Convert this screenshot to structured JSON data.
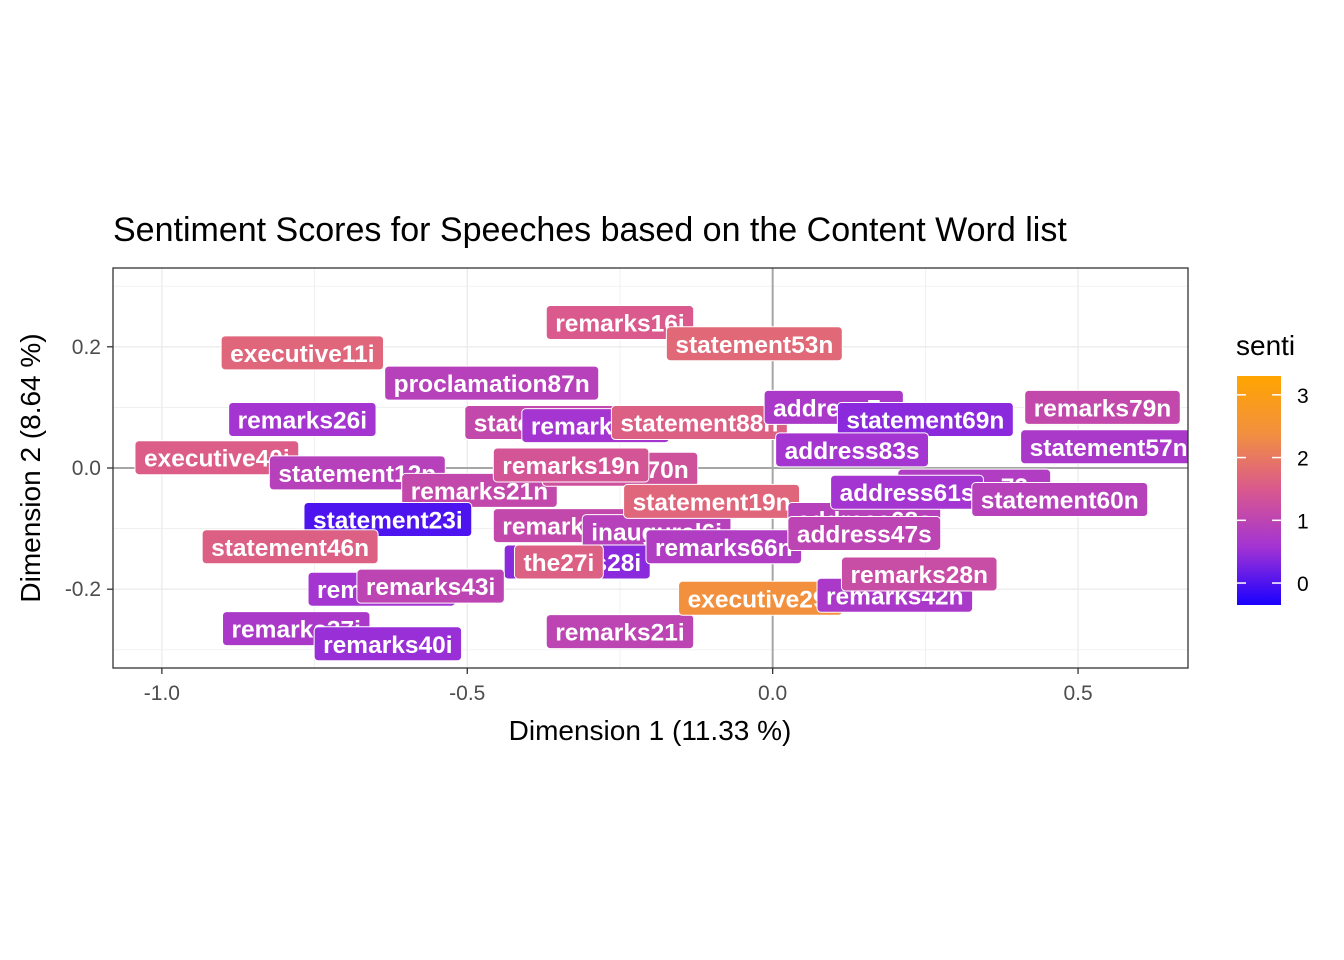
{
  "chart_data": {
    "type": "scatter",
    "title": "Sentiment Scores for Speeches based on the Content Word list",
    "xlabel": "Dimension 1 (11.33 %)",
    "ylabel": "Dimension 2 (8.64 %)",
    "xlim": [
      -1.08,
      0.68
    ],
    "ylim": [
      -0.33,
      0.33
    ],
    "x_ticks": [
      -1.0,
      -0.5,
      0.0,
      0.5
    ],
    "x_tick_labels": [
      "-1.0",
      "-0.5",
      "0.0",
      "0.5"
    ],
    "y_ticks": [
      -0.2,
      0.0,
      0.2
    ],
    "y_tick_labels": [
      "-0.2",
      "0.0",
      "0.2"
    ],
    "grid": true,
    "reference_lines": {
      "x": 0.0,
      "y": 0.0
    },
    "legend": {
      "title": "senti",
      "placement": "right",
      "type": "colorbar",
      "min": -0.35,
      "max": 3.3,
      "ticks": [
        0,
        1,
        2,
        3
      ],
      "tick_labels": [
        "0",
        "1",
        "2",
        "3"
      ],
      "colors": [
        "#1A00FF",
        "#A233D4",
        "#D9588F",
        "#F2903F",
        "#FFA500"
      ]
    },
    "points": [
      {
        "label": "executive40i",
        "x": -0.91,
        "y": 0.017,
        "senti": 1.55
      },
      {
        "label": "statement12n",
        "x": -0.68,
        "y": -0.008,
        "senti": 0.9
      },
      {
        "label": "remarks21n",
        "x": -0.48,
        "y": -0.037,
        "senti": 1.1
      },
      {
        "label": "statement23i",
        "x": -0.63,
        "y": -0.085,
        "senti": 0.0
      },
      {
        "label": "statement46n",
        "x": -0.79,
        "y": -0.13,
        "senti": 1.6
      },
      {
        "label": "remarks26i",
        "x": -0.77,
        "y": 0.08,
        "senti": 0.6
      },
      {
        "label": "executive11i",
        "x": -0.77,
        "y": 0.19,
        "senti": 1.7
      },
      {
        "label": "proclamation87n",
        "x": -0.46,
        "y": 0.14,
        "senti": 0.9
      },
      {
        "label": "remarks16i",
        "x": -0.25,
        "y": 0.24,
        "senti": 1.5
      },
      {
        "label": "statement53n",
        "x": -0.03,
        "y": 0.205,
        "senti": 1.75
      },
      {
        "label": "statement38n",
        "x": -0.36,
        "y": 0.075,
        "senti": 1.1
      },
      {
        "label": "remarks18i",
        "x": -0.29,
        "y": 0.07,
        "senti": 0.6
      },
      {
        "label": "statement88n",
        "x": -0.12,
        "y": 0.075,
        "senti": 1.6
      },
      {
        "label": "remarks70n",
        "x": -0.25,
        "y": -0.002,
        "senti": 1.3
      },
      {
        "label": "remarks19n",
        "x": -0.33,
        "y": 0.005,
        "senti": 1.4
      },
      {
        "label": "remarks27n",
        "x": -0.33,
        "y": -0.095,
        "senti": 1.1
      },
      {
        "label": "inaugural6i",
        "x": -0.19,
        "y": -0.105,
        "senti": 0.9
      },
      {
        "label": "address28i",
        "x": -0.32,
        "y": -0.155,
        "senti": 0.4
      },
      {
        "label": "the27i",
        "x": -0.35,
        "y": -0.155,
        "senti": 1.6
      },
      {
        "label": "remarks41i",
        "x": -0.64,
        "y": -0.2,
        "senti": 0.6
      },
      {
        "label": "remarks43i",
        "x": -0.56,
        "y": -0.195,
        "senti": 1.0
      },
      {
        "label": "remarks37i",
        "x": -0.78,
        "y": -0.265,
        "senti": 0.7
      },
      {
        "label": "remarks40i",
        "x": -0.63,
        "y": -0.29,
        "senti": 0.5
      },
      {
        "label": "remarks21i",
        "x": -0.25,
        "y": -0.27,
        "senti": 1.0
      },
      {
        "label": "statement19n",
        "x": -0.1,
        "y": -0.055,
        "senti": 1.7
      },
      {
        "label": "remarks66n",
        "x": -0.08,
        "y": -0.13,
        "senti": 0.8
      },
      {
        "label": "executive29i",
        "x": -0.02,
        "y": -0.215,
        "senti": 2.4
      },
      {
        "label": "remarks42n",
        "x": 0.2,
        "y": -0.21,
        "senti": 0.7
      },
      {
        "label": "remarks28n",
        "x": 0.24,
        "y": -0.175,
        "senti": 1.2
      },
      {
        "label": "address7s",
        "x": 0.1,
        "y": 0.1,
        "senti": 0.7
      },
      {
        "label": "statement69n",
        "x": 0.25,
        "y": 0.08,
        "senti": 0.4
      },
      {
        "label": "address83s",
        "x": 0.13,
        "y": 0.03,
        "senti": 0.6
      },
      {
        "label": "address72s",
        "x": 0.33,
        "y": -0.03,
        "senti": 0.8
      },
      {
        "label": "address68s",
        "x": 0.15,
        "y": -0.085,
        "senti": 0.9
      },
      {
        "label": "address47s",
        "x": 0.15,
        "y": -0.108,
        "senti": 1.0
      },
      {
        "label": "address61s",
        "x": 0.22,
        "y": -0.04,
        "senti": 0.6
      },
      {
        "label": "statement57n",
        "x": 0.55,
        "y": 0.035,
        "senti": 0.7
      },
      {
        "label": "remarks79n",
        "x": 0.54,
        "y": 0.1,
        "senti": 1.1
      },
      {
        "label": "statement60n",
        "x": 0.47,
        "y": -0.052,
        "senti": 0.9
      }
    ]
  }
}
